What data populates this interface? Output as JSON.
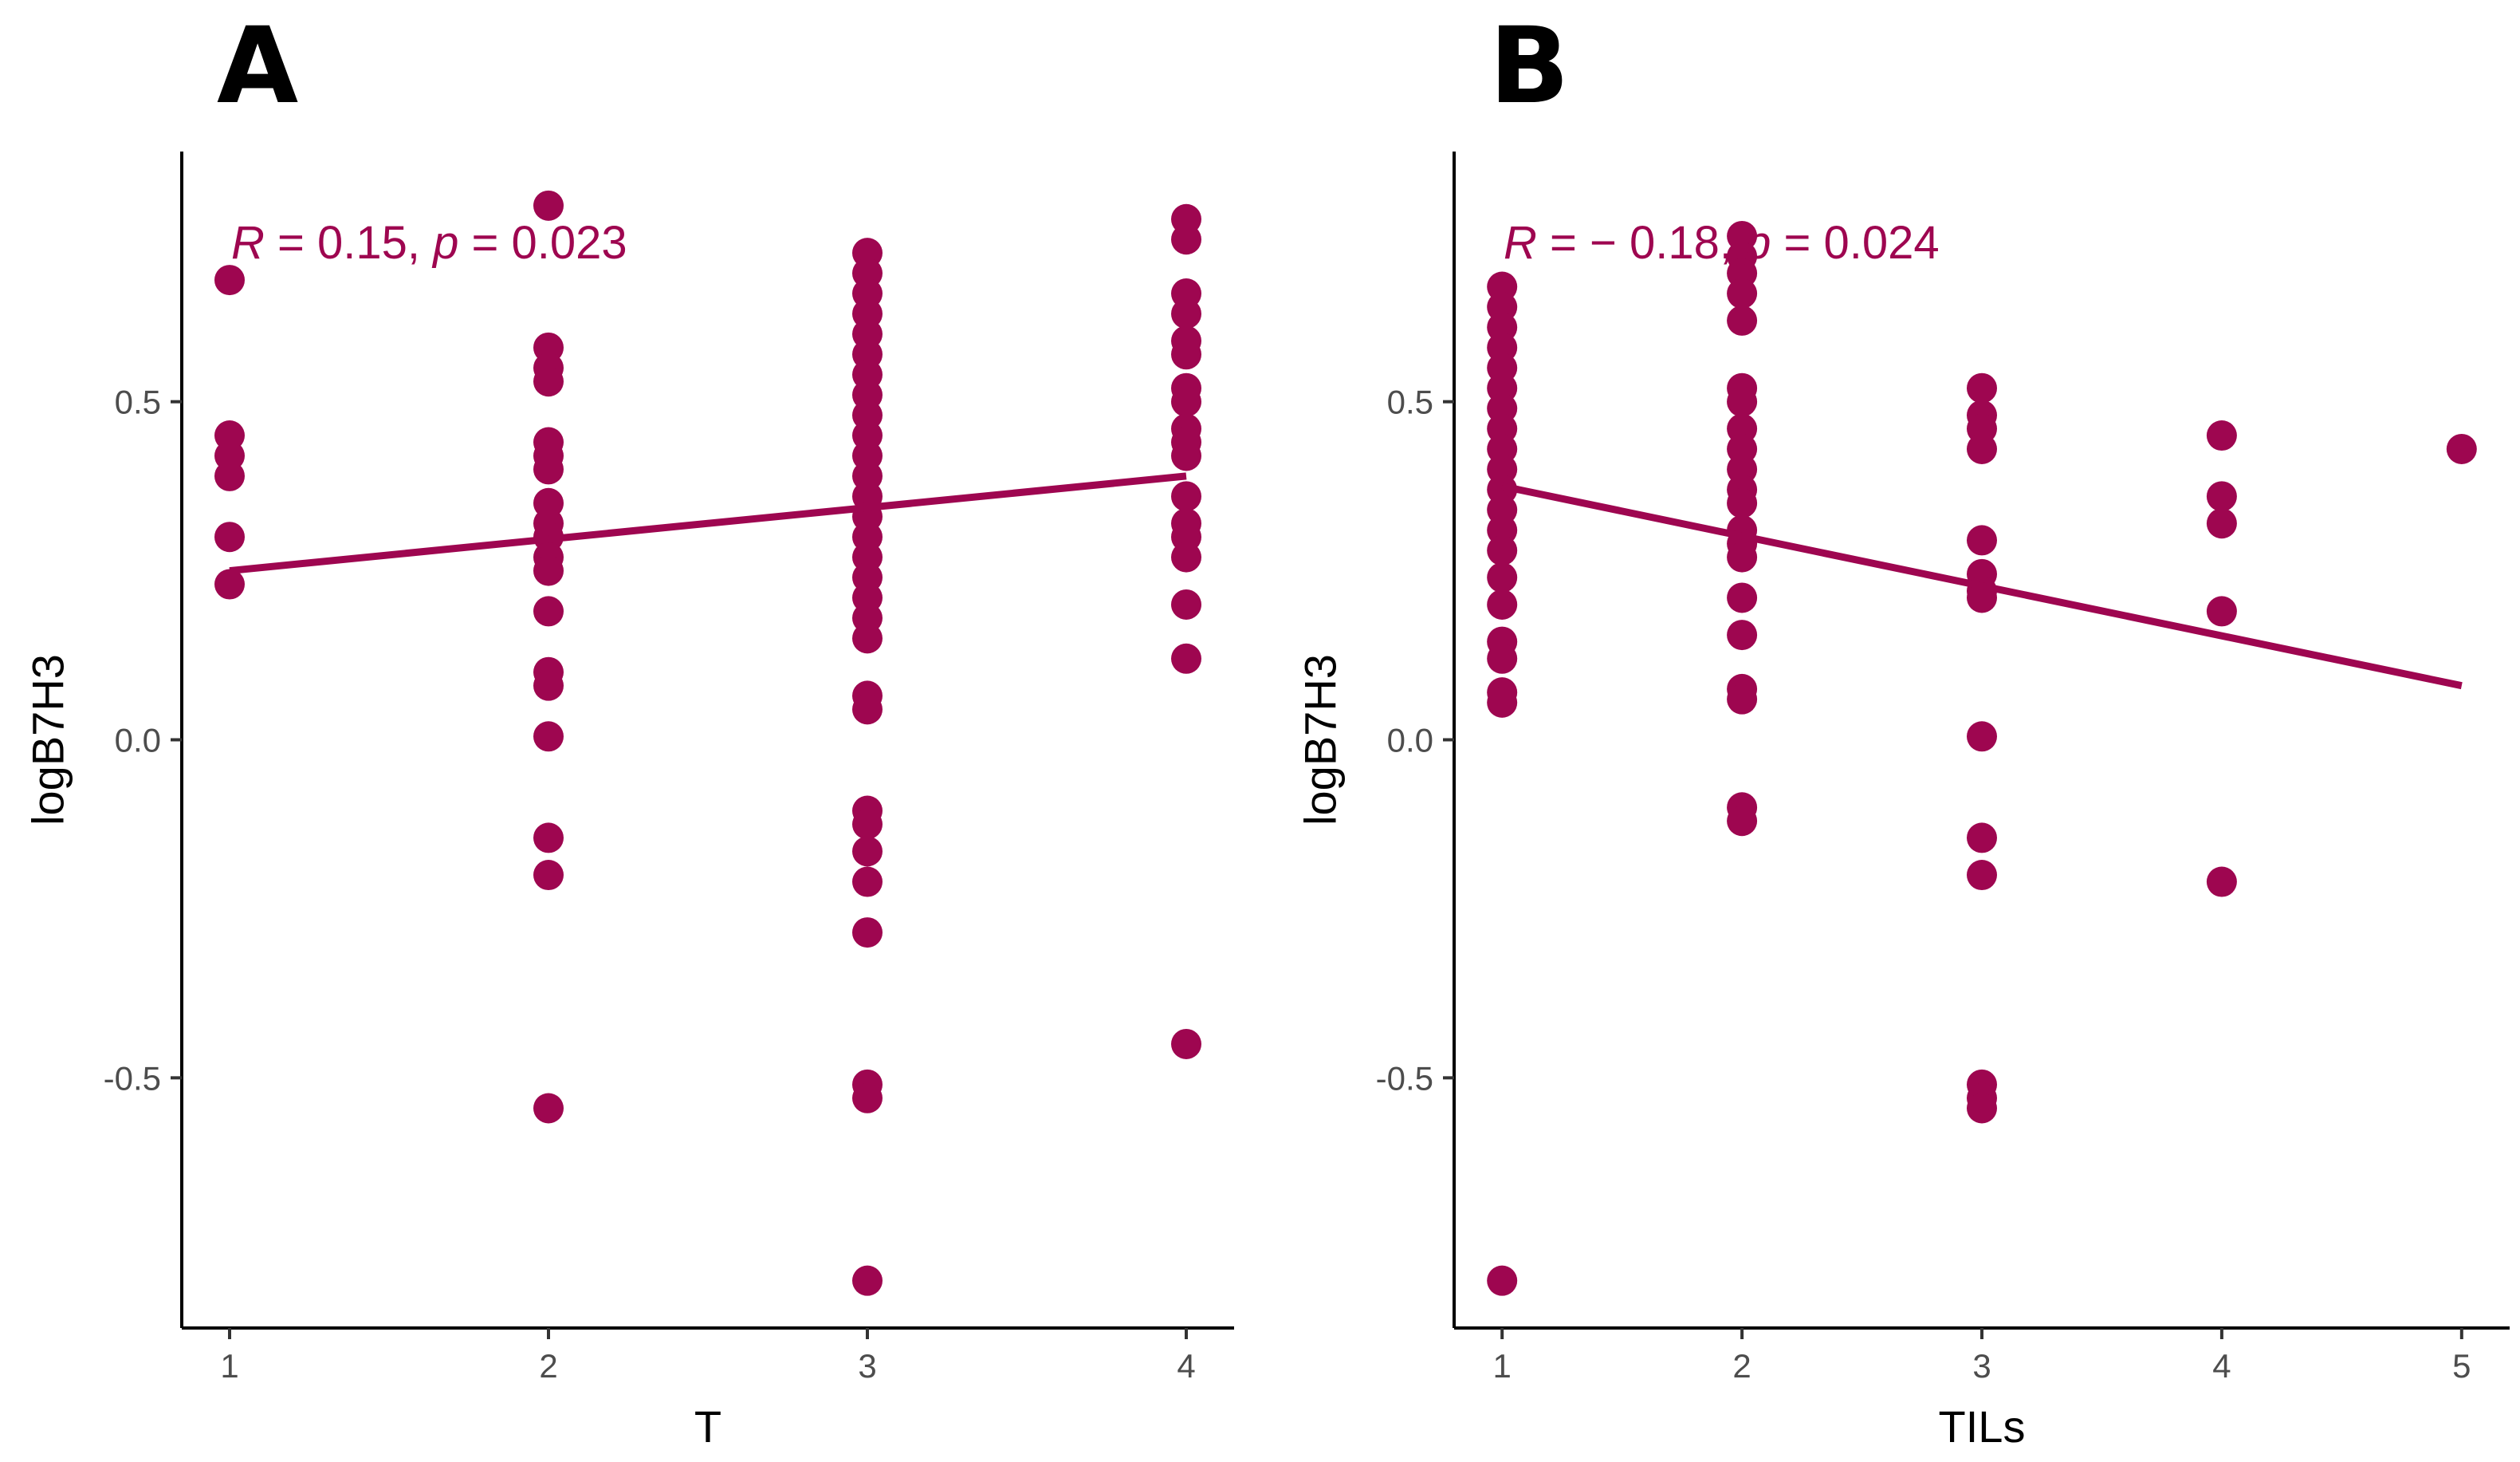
{
  "point_color": "#9e0650",
  "chart_data": [
    {
      "type": "scatter",
      "panel_label": "A",
      "xlabel": "T",
      "ylabel": "logB7H3",
      "x_ticks": [
        "1",
        "2",
        "3",
        "4"
      ],
      "y_ticks": [
        "-0.5",
        "0.0",
        "0.5"
      ],
      "xlim": [
        0.85,
        4.15
      ],
      "ylim": [
        -0.87,
        0.87
      ],
      "annotation": {
        "r_symbol": "R",
        "r_text": " = 0.15, ",
        "p_symbol": "p",
        "p_text": " = 0.023"
      },
      "regression": {
        "x": [
          1,
          4
        ],
        "y": [
          0.25,
          0.39
        ]
      },
      "points": [
        [
          1,
          0.68
        ],
        [
          1,
          0.45
        ],
        [
          1,
          0.42
        ],
        [
          1,
          0.39
        ],
        [
          1,
          0.3
        ],
        [
          1,
          0.23
        ],
        [
          2,
          0.79
        ],
        [
          2,
          0.58
        ],
        [
          2,
          0.55
        ],
        [
          2,
          0.53
        ],
        [
          2,
          0.44
        ],
        [
          2,
          0.42
        ],
        [
          2,
          0.4
        ],
        [
          2,
          0.35
        ],
        [
          2,
          0.32
        ],
        [
          2,
          0.3
        ],
        [
          2,
          0.27
        ],
        [
          2,
          0.25
        ],
        [
          2,
          0.19
        ],
        [
          2,
          0.1
        ],
        [
          2,
          0.08
        ],
        [
          2,
          0.005
        ],
        [
          2,
          -0.145
        ],
        [
          2,
          -0.2
        ],
        [
          2,
          -0.545
        ],
        [
          3,
          0.72
        ],
        [
          3,
          0.69
        ],
        [
          3,
          0.66
        ],
        [
          3,
          0.63
        ],
        [
          3,
          0.6
        ],
        [
          3,
          0.57
        ],
        [
          3,
          0.54
        ],
        [
          3,
          0.51
        ],
        [
          3,
          0.48
        ],
        [
          3,
          0.45
        ],
        [
          3,
          0.42
        ],
        [
          3,
          0.39
        ],
        [
          3,
          0.36
        ],
        [
          3,
          0.33
        ],
        [
          3,
          0.3
        ],
        [
          3,
          0.27
        ],
        [
          3,
          0.24
        ],
        [
          3,
          0.21
        ],
        [
          3,
          0.18
        ],
        [
          3,
          0.15
        ],
        [
          3,
          0.065
        ],
        [
          3,
          0.045
        ],
        [
          3,
          -0.105
        ],
        [
          3,
          -0.125
        ],
        [
          3,
          -0.165
        ],
        [
          3,
          -0.21
        ],
        [
          3,
          -0.285
        ],
        [
          3,
          -0.51
        ],
        [
          3,
          -0.53
        ],
        [
          3,
          -0.8
        ],
        [
          4,
          0.77
        ],
        [
          4,
          0.74
        ],
        [
          4,
          0.66
        ],
        [
          4,
          0.63
        ],
        [
          4,
          0.59
        ],
        [
          4,
          0.57
        ],
        [
          4,
          0.52
        ],
        [
          4,
          0.5
        ],
        [
          4,
          0.46
        ],
        [
          4,
          0.44
        ],
        [
          4,
          0.42
        ],
        [
          4,
          0.36
        ],
        [
          4,
          0.32
        ],
        [
          4,
          0.3
        ],
        [
          4,
          0.27
        ],
        [
          4,
          0.2
        ],
        [
          4,
          0.12
        ],
        [
          4,
          -0.45
        ]
      ]
    },
    {
      "type": "scatter",
      "panel_label": "B",
      "xlabel": "TILs",
      "ylabel": "logB7H3",
      "x_ticks": [
        "1",
        "2",
        "3",
        "4",
        "5"
      ],
      "y_ticks": [
        "-0.5",
        "0.0",
        "0.5"
      ],
      "xlim": [
        0.8,
        5.2
      ],
      "ylim": [
        -0.87,
        0.87
      ],
      "annotation": {
        "r_symbol": "R",
        "r_text": " = − 0.18, ",
        "p_symbol": "p",
        "p_text": " = 0.024"
      },
      "regression": {
        "x": [
          1,
          5
        ],
        "y": [
          0.375,
          0.08
        ]
      },
      "points": [
        [
          1,
          0.67
        ],
        [
          1,
          0.64
        ],
        [
          1,
          0.61
        ],
        [
          1,
          0.58
        ],
        [
          1,
          0.55
        ],
        [
          1,
          0.52
        ],
        [
          1,
          0.49
        ],
        [
          1,
          0.46
        ],
        [
          1,
          0.43
        ],
        [
          1,
          0.4
        ],
        [
          1,
          0.37
        ],
        [
          1,
          0.34
        ],
        [
          1,
          0.31
        ],
        [
          1,
          0.28
        ],
        [
          1,
          0.24
        ],
        [
          1,
          0.2
        ],
        [
          1,
          0.145
        ],
        [
          1,
          0.12
        ],
        [
          1,
          0.07
        ],
        [
          1,
          0.055
        ],
        [
          1,
          -0.8
        ],
        [
          2,
          0.745
        ],
        [
          2,
          0.715
        ],
        [
          2,
          0.69
        ],
        [
          2,
          0.66
        ],
        [
          2,
          0.62
        ],
        [
          2,
          0.52
        ],
        [
          2,
          0.5
        ],
        [
          2,
          0.46
        ],
        [
          2,
          0.43
        ],
        [
          2,
          0.4
        ],
        [
          2,
          0.37
        ],
        [
          2,
          0.35
        ],
        [
          2,
          0.31
        ],
        [
          2,
          0.29
        ],
        [
          2,
          0.27
        ],
        [
          2,
          0.21
        ],
        [
          2,
          0.155
        ],
        [
          2,
          0.075
        ],
        [
          2,
          0.06
        ],
        [
          2,
          -0.1
        ],
        [
          2,
          -0.12
        ],
        [
          3,
          0.52
        ],
        [
          3,
          0.48
        ],
        [
          3,
          0.46
        ],
        [
          3,
          0.43
        ],
        [
          3,
          0.295
        ],
        [
          3,
          0.245
        ],
        [
          3,
          0.22
        ],
        [
          3,
          0.21
        ],
        [
          3,
          0.005
        ],
        [
          3,
          -0.145
        ],
        [
          3,
          -0.2
        ],
        [
          3,
          -0.51
        ],
        [
          3,
          -0.53
        ],
        [
          3,
          -0.545
        ],
        [
          4,
          0.45
        ],
        [
          4,
          0.36
        ],
        [
          4,
          0.32
        ],
        [
          4,
          0.19
        ],
        [
          4,
          -0.21
        ],
        [
          5,
          0.43
        ]
      ]
    }
  ]
}
